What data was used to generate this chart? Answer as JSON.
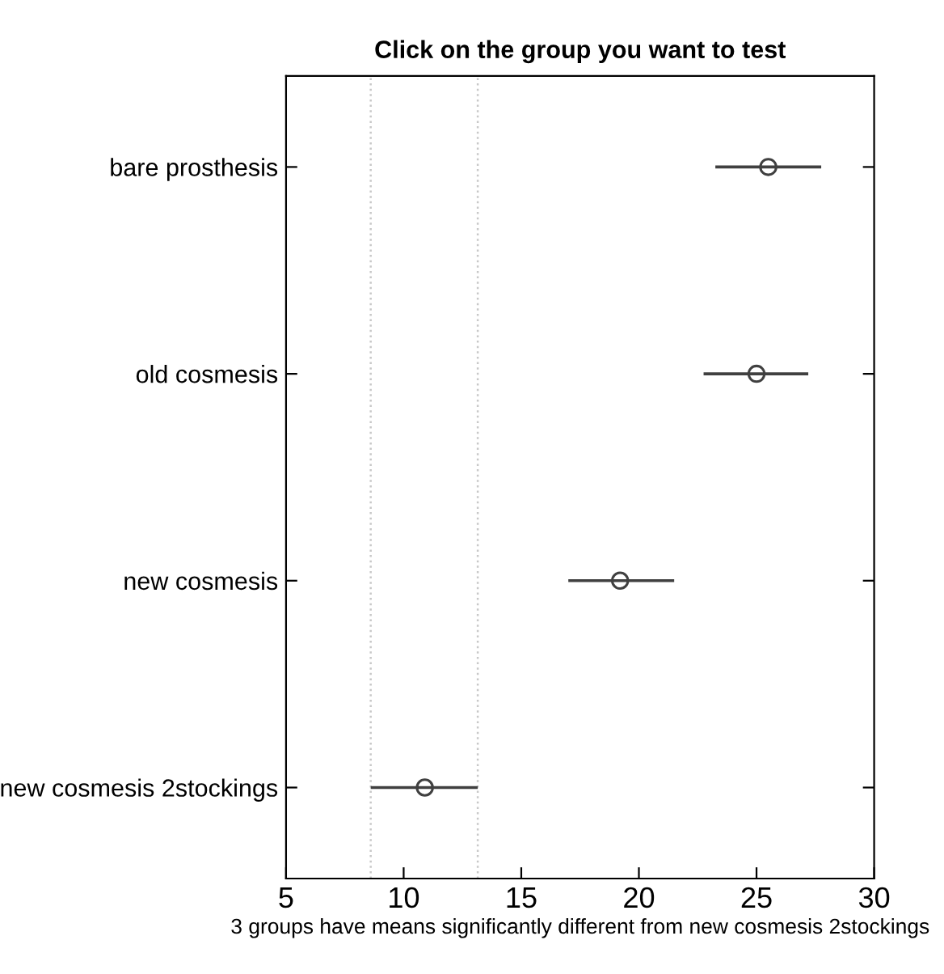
{
  "chart_data": {
    "type": "scatter",
    "orientation": "horizontal",
    "title": "Click on the group you want to test",
    "xlabel": "3 groups have means significantly different from new cosmesis 2stockings",
    "categories": [
      "bare prosthesis",
      "old cosmesis",
      "new cosmesis",
      "new cosmesis 2stockings"
    ],
    "values": [
      25.5,
      25.0,
      19.2,
      10.9
    ],
    "errors": [
      [
        23.25,
        27.75
      ],
      [
        22.75,
        27.2
      ],
      [
        17.0,
        21.5
      ],
      [
        8.6,
        13.15
      ]
    ],
    "color": "#404040",
    "marker": "circle",
    "xlim": [
      5,
      30
    ],
    "xticks": [
      5,
      10,
      15,
      20,
      25,
      30
    ],
    "ref_lines": [
      {
        "axis": "x",
        "value": 8.6,
        "color": "#c8c8c8",
        "line_style": "dotted"
      },
      {
        "axis": "x",
        "value": 13.15,
        "color": "#c8c8c8",
        "line_style": "dotted"
      }
    ],
    "grid": false
  }
}
